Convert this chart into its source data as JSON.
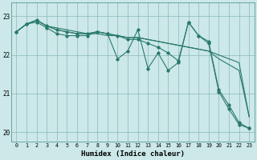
{
  "xlabel": "Humidex (Indice chaleur)",
  "bg_color": "#cce8e8",
  "grid_color": "#8ab8b8",
  "line_color": "#2a7a6a",
  "xlim": [
    -0.5,
    23.5
  ],
  "ylim": [
    19.75,
    23.35
  ],
  "yticks": [
    20,
    21,
    22,
    23
  ],
  "xticks": [
    0,
    1,
    2,
    3,
    4,
    5,
    6,
    7,
    8,
    9,
    10,
    11,
    12,
    13,
    14,
    15,
    16,
    17,
    18,
    19,
    20,
    21,
    22,
    23
  ],
  "series": [
    {
      "y": [
        22.6,
        22.8,
        22.9,
        22.75,
        22.7,
        22.65,
        22.6,
        22.55,
        22.55,
        22.5,
        22.5,
        22.45,
        22.45,
        22.4,
        22.35,
        22.3,
        22.25,
        22.2,
        22.15,
        22.1,
        22.0,
        21.9,
        21.8,
        20.4
      ],
      "marker": false
    },
    {
      "y": [
        22.6,
        22.8,
        22.9,
        22.75,
        22.65,
        22.6,
        22.55,
        22.55,
        22.6,
        22.55,
        22.5,
        22.45,
        22.45,
        22.4,
        22.35,
        22.3,
        22.25,
        22.2,
        22.15,
        22.1,
        21.9,
        21.75,
        21.6,
        20.4
      ],
      "marker": false
    },
    {
      "y": [
        22.6,
        22.8,
        22.85,
        22.7,
        22.55,
        22.5,
        22.5,
        22.5,
        22.6,
        22.55,
        21.9,
        22.1,
        22.65,
        21.65,
        22.05,
        21.6,
        21.8,
        22.85,
        22.5,
        22.35,
        21.1,
        20.7,
        20.25,
        20.1
      ],
      "marker": true
    },
    {
      "y": [
        22.6,
        22.8,
        22.9,
        22.75,
        22.65,
        22.6,
        22.55,
        22.55,
        22.6,
        22.55,
        22.5,
        22.4,
        22.4,
        22.3,
        22.2,
        22.05,
        21.85,
        22.85,
        22.5,
        22.3,
        21.05,
        20.6,
        20.2,
        20.1
      ],
      "marker": true
    }
  ]
}
